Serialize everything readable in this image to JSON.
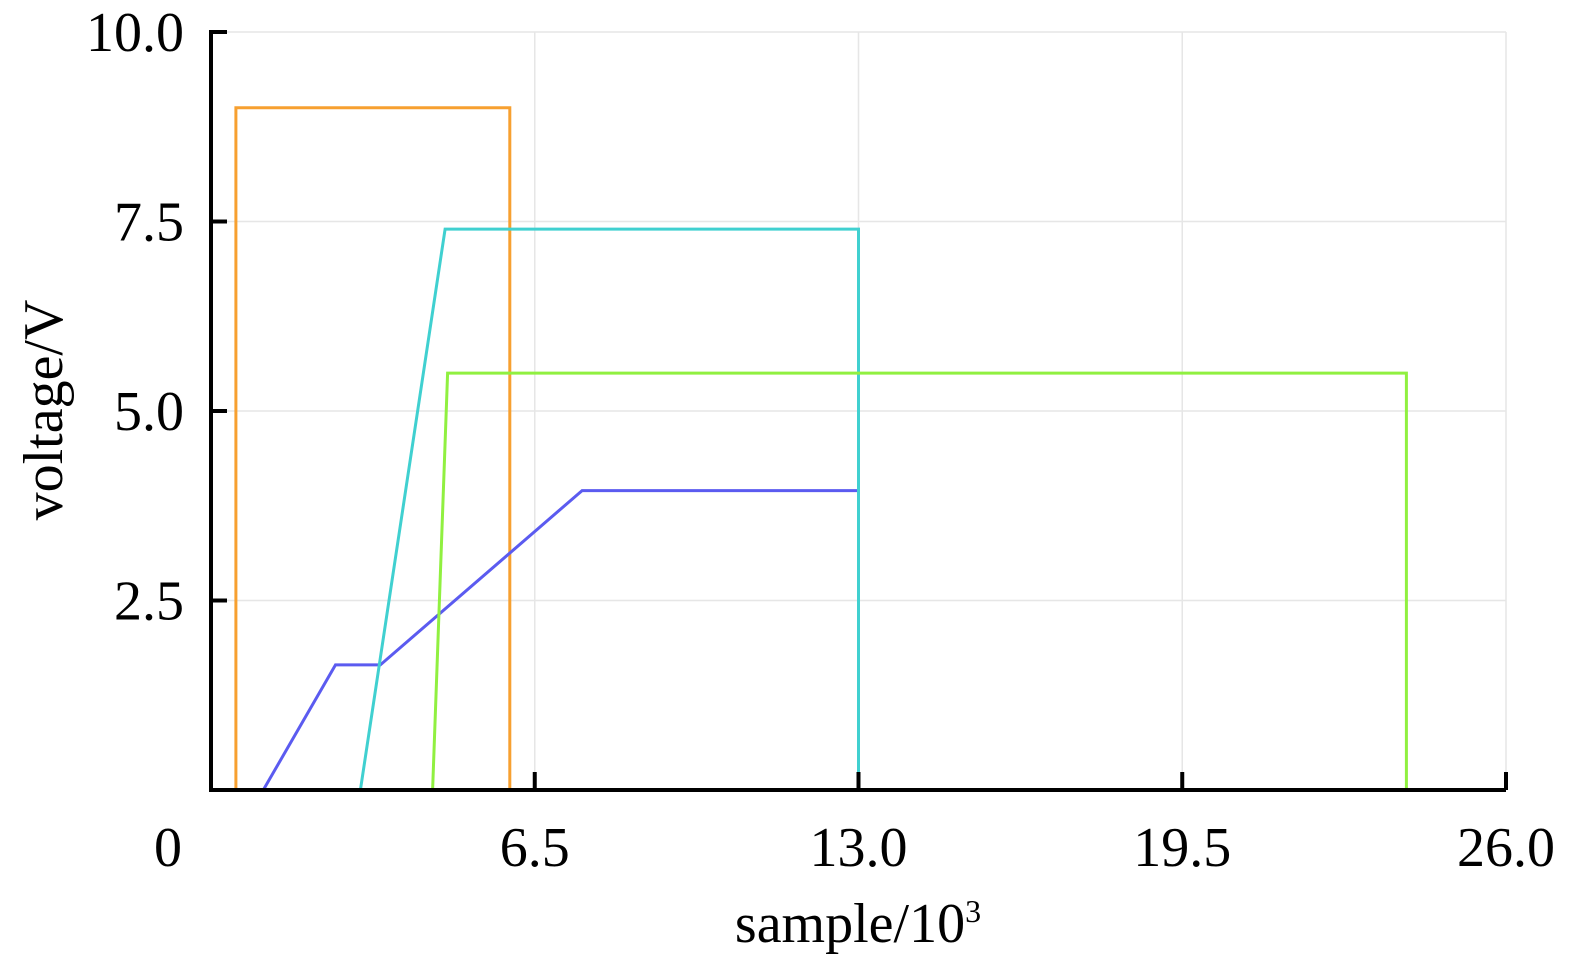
{
  "chart_data": {
    "type": "line",
    "xlabel": "sample/10",
    "xlabel_sup": "3",
    "ylabel": "voltage/V",
    "xlim": [
      0,
      26.0
    ],
    "ylim": [
      0,
      10.0
    ],
    "x_ticks": [
      "0",
      "6.5",
      "13.0",
      "19.5",
      "26.0"
    ],
    "x_tick_values": [
      0,
      6.5,
      13.0,
      19.5,
      26.0
    ],
    "y_ticks": [
      "2.5",
      "5.0",
      "7.5",
      "10.0"
    ],
    "y_tick_values": [
      2.5,
      5.0,
      7.5,
      10.0
    ],
    "grid": true,
    "series": [
      {
        "color": "#f7a030",
        "x": [
          0.5,
          0.5,
          6.0,
          6.0
        ],
        "y": [
          0,
          9.0,
          9.0,
          0
        ]
      },
      {
        "color": "#5b5bf0",
        "x": [
          1.05,
          2.5,
          3.4,
          7.45,
          13.0,
          13.0
        ],
        "y": [
          0,
          1.65,
          1.65,
          3.95,
          3.95,
          0
        ]
      },
      {
        "color": "#40d0d0",
        "x": [
          3.0,
          4.7,
          13.0,
          13.0
        ],
        "y": [
          0,
          7.4,
          7.4,
          0
        ]
      },
      {
        "color": "#90f040",
        "x": [
          4.45,
          4.75,
          24.0,
          24.0
        ],
        "y": [
          0,
          5.5,
          5.5,
          0
        ]
      }
    ]
  }
}
